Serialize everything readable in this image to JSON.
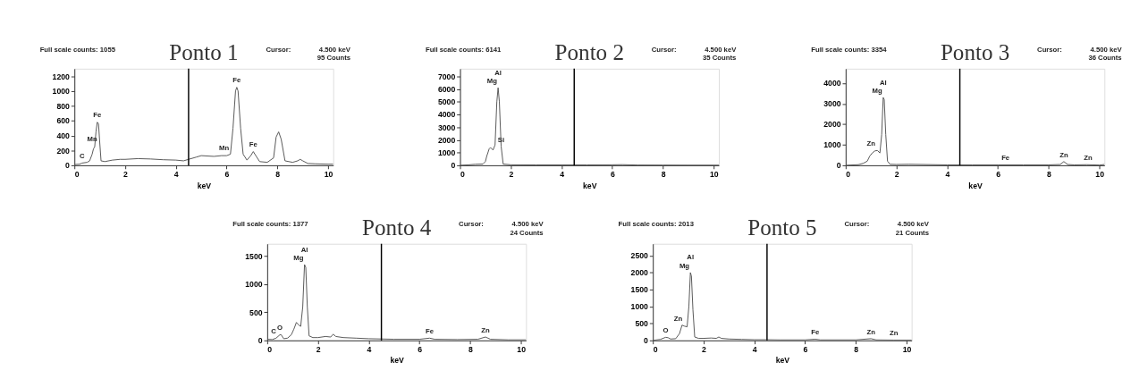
{
  "chart_data": [
    {
      "type": "line",
      "title": "Ponto 1",
      "xlabel": "keV",
      "xlim": [
        0,
        10.2
      ],
      "ylim": [
        0,
        1300
      ],
      "xticks": [
        0,
        2,
        4,
        6,
        8,
        10
      ],
      "yticks": [
        0,
        200,
        400,
        600,
        800,
        1000,
        1200
      ],
      "grid": false,
      "series": [
        {
          "color": "#555555",
          "x": [
            0,
            0.2,
            0.3,
            0.5,
            0.6,
            0.7,
            0.75,
            0.8,
            0.85,
            0.9,
            0.95,
            1.0,
            1.05,
            1.2,
            1.5,
            1.8,
            2.0,
            2.5,
            3.0,
            3.5,
            4.0,
            4.3,
            4.5,
            4.8,
            5.0,
            5.5,
            5.8,
            6.0,
            6.15,
            6.25,
            6.35,
            6.4,
            6.45,
            6.55,
            6.65,
            6.8,
            6.95,
            7.05,
            7.15,
            7.3,
            7.6,
            7.85,
            7.95,
            8.05,
            8.15,
            8.3,
            8.6,
            8.8,
            8.9,
            9.0,
            9.2,
            9.5,
            10.0,
            10.2
          ],
          "values": [
            10,
            15,
            30,
            40,
            60,
            150,
            220,
            250,
            450,
            580,
            560,
            300,
            60,
            50,
            70,
            80,
            80,
            90,
            85,
            75,
            70,
            60,
            80,
            110,
            130,
            120,
            130,
            130,
            150,
            500,
            1000,
            1050,
            1000,
            500,
            150,
            70,
            130,
            185,
            130,
            50,
            40,
            100,
            380,
            450,
            350,
            60,
            40,
            60,
            80,
            60,
            25,
            20,
            15,
            15
          ]
        }
      ],
      "ref_lines": [
        {
          "axis": "x",
          "value": 4.5,
          "color": "#000000"
        }
      ],
      "annotations": [
        "Full scale counts: 1055",
        "Cursor:",
        "4.500 keV",
        "95 Counts",
        {
          "text": "C",
          "x": 0.3,
          "y": 40
        },
        {
          "text": "Mn",
          "x": 0.7,
          "y": 260
        },
        {
          "text": "Fe",
          "x": 0.9,
          "y": 590
        },
        {
          "text": "Mn",
          "x": 5.9,
          "y": 140
        },
        {
          "text": "Fe",
          "x": 6.4,
          "y": 1060
        },
        {
          "text": "Fe",
          "x": 7.05,
          "y": 190
        }
      ]
    },
    {
      "type": "line",
      "title": "Ponto 2",
      "xlabel": "keV",
      "xlim": [
        0,
        10.2
      ],
      "ylim": [
        0,
        7600
      ],
      "xticks": [
        0,
        2,
        4,
        6,
        8,
        10
      ],
      "yticks": [
        0,
        1000,
        2000,
        3000,
        4000,
        5000,
        6000,
        7000
      ],
      "grid": false,
      "series": [
        {
          "color": "#555555",
          "x": [
            0,
            0.3,
            0.6,
            0.9,
            1.0,
            1.05,
            1.15,
            1.2,
            1.3,
            1.38,
            1.45,
            1.5,
            1.55,
            1.62,
            1.7,
            2.0,
            3.0,
            4.0,
            5.0,
            6.0,
            6.4,
            7.0,
            8.0,
            9.0,
            10.2
          ],
          "values": [
            0,
            30,
            80,
            100,
            300,
            700,
            1300,
            1400,
            1200,
            1600,
            5000,
            6100,
            5000,
            1500,
            100,
            40,
            30,
            30,
            30,
            40,
            50,
            20,
            15,
            10,
            10
          ]
        }
      ],
      "ref_lines": [
        {
          "axis": "x",
          "value": 4.5,
          "color": "#000000"
        }
      ],
      "annotations": [
        "Full scale counts: 6141",
        "Cursor:",
        "4.500 keV",
        "35 Counts",
        {
          "text": "Al",
          "x": 1.5,
          "y": 6100
        },
        {
          "text": "Mg",
          "x": 1.5,
          "y": 6100
        },
        {
          "text": "Si",
          "x": 1.62,
          "y": 1500
        }
      ]
    },
    {
      "type": "line",
      "title": "Ponto 3",
      "xlabel": "keV",
      "xlim": [
        0,
        10.2
      ],
      "ylim": [
        0,
        4700
      ],
      "xticks": [
        0,
        2,
        4,
        6,
        8,
        10
      ],
      "yticks": [
        0,
        1000,
        2000,
        3000,
        4000
      ],
      "grid": false,
      "series": [
        {
          "color": "#555555",
          "x": [
            0,
            0.5,
            0.7,
            0.85,
            0.95,
            1.05,
            1.15,
            1.25,
            1.35,
            1.42,
            1.48,
            1.52,
            1.58,
            1.65,
            1.75,
            2.0,
            2.5,
            3.0,
            4.0,
            5.0,
            6.0,
            7.0,
            8.0,
            8.45,
            8.6,
            8.75,
            9.0,
            9.5,
            10.0,
            10.2
          ],
          "values": [
            0,
            30,
            100,
            200,
            450,
            600,
            700,
            720,
            600,
            1500,
            3300,
            3200,
            1500,
            200,
            50,
            40,
            50,
            40,
            20,
            20,
            20,
            20,
            20,
            40,
            180,
            40,
            20,
            30,
            10,
            40
          ]
        }
      ],
      "ref_lines": [
        {
          "axis": "x",
          "value": 4.5,
          "color": "#000000"
        }
      ],
      "annotations": [
        "Full scale counts: 3354",
        "Cursor:",
        "4.500 keV",
        "36 Counts",
        {
          "text": "Al",
          "x": 1.48,
          "y": 3300
        },
        {
          "text": "Mg",
          "x": 1.48,
          "y": 3300
        },
        {
          "text": "Zn",
          "x": 1.0,
          "y": 750
        },
        {
          "text": "Fe",
          "x": 6.3,
          "y": 40
        },
        {
          "text": "Zn",
          "x": 8.6,
          "y": 200
        },
        {
          "text": "Zn",
          "x": 9.55,
          "y": 40
        }
      ]
    },
    {
      "type": "line",
      "title": "Ponto 4",
      "xlabel": "keV",
      "xlim": [
        0,
        10.2
      ],
      "ylim": [
        0,
        1720
      ],
      "xticks": [
        0,
        2,
        4,
        6,
        8,
        10
      ],
      "yticks": [
        0,
        500,
        1000,
        1500
      ],
      "grid": false,
      "series": [
        {
          "color": "#555555",
          "x": [
            0,
            0.2,
            0.35,
            0.5,
            0.55,
            0.65,
            0.8,
            0.95,
            1.05,
            1.15,
            1.25,
            1.32,
            1.4,
            1.47,
            1.52,
            1.58,
            1.65,
            1.8,
            2.0,
            2.3,
            2.5,
            2.6,
            2.7,
            3.0,
            3.5,
            4.0,
            4.5,
            5.0,
            6.0,
            6.4,
            6.6,
            7.5,
            8.3,
            8.6,
            8.8,
            9.5,
            10.2
          ],
          "values": [
            20,
            15,
            40,
            100,
            100,
            30,
            40,
            100,
            200,
            320,
            270,
            250,
            600,
            1350,
            1300,
            600,
            80,
            50,
            50,
            70,
            60,
            110,
            70,
            50,
            40,
            30,
            25,
            20,
            20,
            40,
            20,
            15,
            20,
            60,
            20,
            10,
            10
          ]
        }
      ],
      "ref_lines": [
        {
          "axis": "x",
          "value": 4.5,
          "color": "#000000"
        }
      ],
      "annotations": [
        "Full scale counts: 1377",
        "Cursor:",
        "4.500 keV",
        "24 Counts",
        {
          "text": "C",
          "x": 0.25,
          "y": 40
        },
        {
          "text": "O",
          "x": 0.5,
          "y": 110
        },
        {
          "text": "Al",
          "x": 1.47,
          "y": 1350
        },
        {
          "text": "Mg",
          "x": 1.47,
          "y": 1350
        },
        {
          "text": "Fe",
          "x": 6.4,
          "y": 50
        },
        {
          "text": "Zn",
          "x": 8.6,
          "y": 70
        }
      ]
    },
    {
      "type": "line",
      "title": "Ponto 5",
      "xlabel": "keV",
      "xlim": [
        0,
        10.2
      ],
      "ylim": [
        0,
        2850
      ],
      "xticks": [
        0,
        2,
        4,
        6,
        8,
        10
      ],
      "yticks": [
        0,
        500,
        1000,
        1500,
        2000,
        2500
      ],
      "grid": false,
      "series": [
        {
          "color": "#555555",
          "x": [
            0,
            0.3,
            0.5,
            0.6,
            0.7,
            0.9,
            1.05,
            1.15,
            1.25,
            1.35,
            1.42,
            1.48,
            1.52,
            1.58,
            1.65,
            1.8,
            2.0,
            2.3,
            2.5,
            2.6,
            2.7,
            3.0,
            3.5,
            4.0,
            4.5,
            5.0,
            6.0,
            6.4,
            6.6,
            8.0,
            8.6,
            8.8,
            9.5,
            10.0,
            10.2
          ],
          "values": [
            0,
            30,
            90,
            80,
            40,
            50,
            200,
            450,
            420,
            400,
            1000,
            2000,
            1900,
            900,
            100,
            60,
            60,
            70,
            60,
            100,
            60,
            40,
            30,
            20,
            20,
            15,
            15,
            35,
            15,
            15,
            50,
            15,
            10,
            10,
            10
          ]
        }
      ],
      "ref_lines": [
        {
          "axis": "x",
          "value": 4.5,
          "color": "#000000"
        }
      ],
      "annotations": [
        "Full scale counts: 2013",
        "Cursor:",
        "4.500 keV",
        "21 Counts",
        {
          "text": "O",
          "x": 0.5,
          "y": 100
        },
        {
          "text": "Zn",
          "x": 1.0,
          "y": 460
        },
        {
          "text": "Al",
          "x": 1.48,
          "y": 2000
        },
        {
          "text": "Mg",
          "x": 1.48,
          "y": 2000
        },
        {
          "text": "Fe",
          "x": 6.4,
          "y": 40
        },
        {
          "text": "Zn",
          "x": 8.6,
          "y": 60
        },
        {
          "text": "Zn",
          "x": 9.5,
          "y": 20
        }
      ]
    }
  ]
}
